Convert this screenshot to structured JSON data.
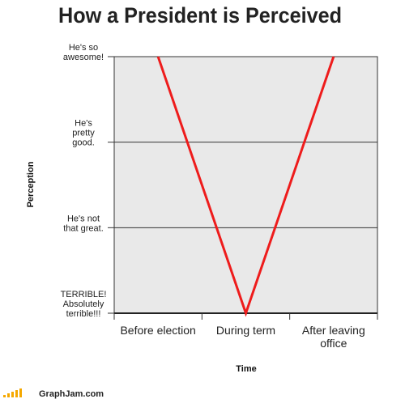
{
  "chart_data": {
    "type": "line",
    "title": "How a President is Perceived",
    "categories": [
      "Before election",
      "During term",
      "After leaving office"
    ],
    "values": [
      3,
      0,
      3
    ],
    "color": "#ee1c1c",
    "ylim": [
      0,
      3
    ],
    "yticks": [
      {
        "value": 0,
        "label": "TERRIBLE!\nAbsolutely\nterrible!!!"
      },
      {
        "value": 1,
        "label": "He's not\nthat great."
      },
      {
        "value": 2,
        "label": "He's\npretty\ngood."
      },
      {
        "value": 3,
        "label": "He's so\nawesome!"
      }
    ],
    "grid": true,
    "xlabel": "Time",
    "ylabel": "Perception"
  },
  "footer": "GraphJam.com"
}
